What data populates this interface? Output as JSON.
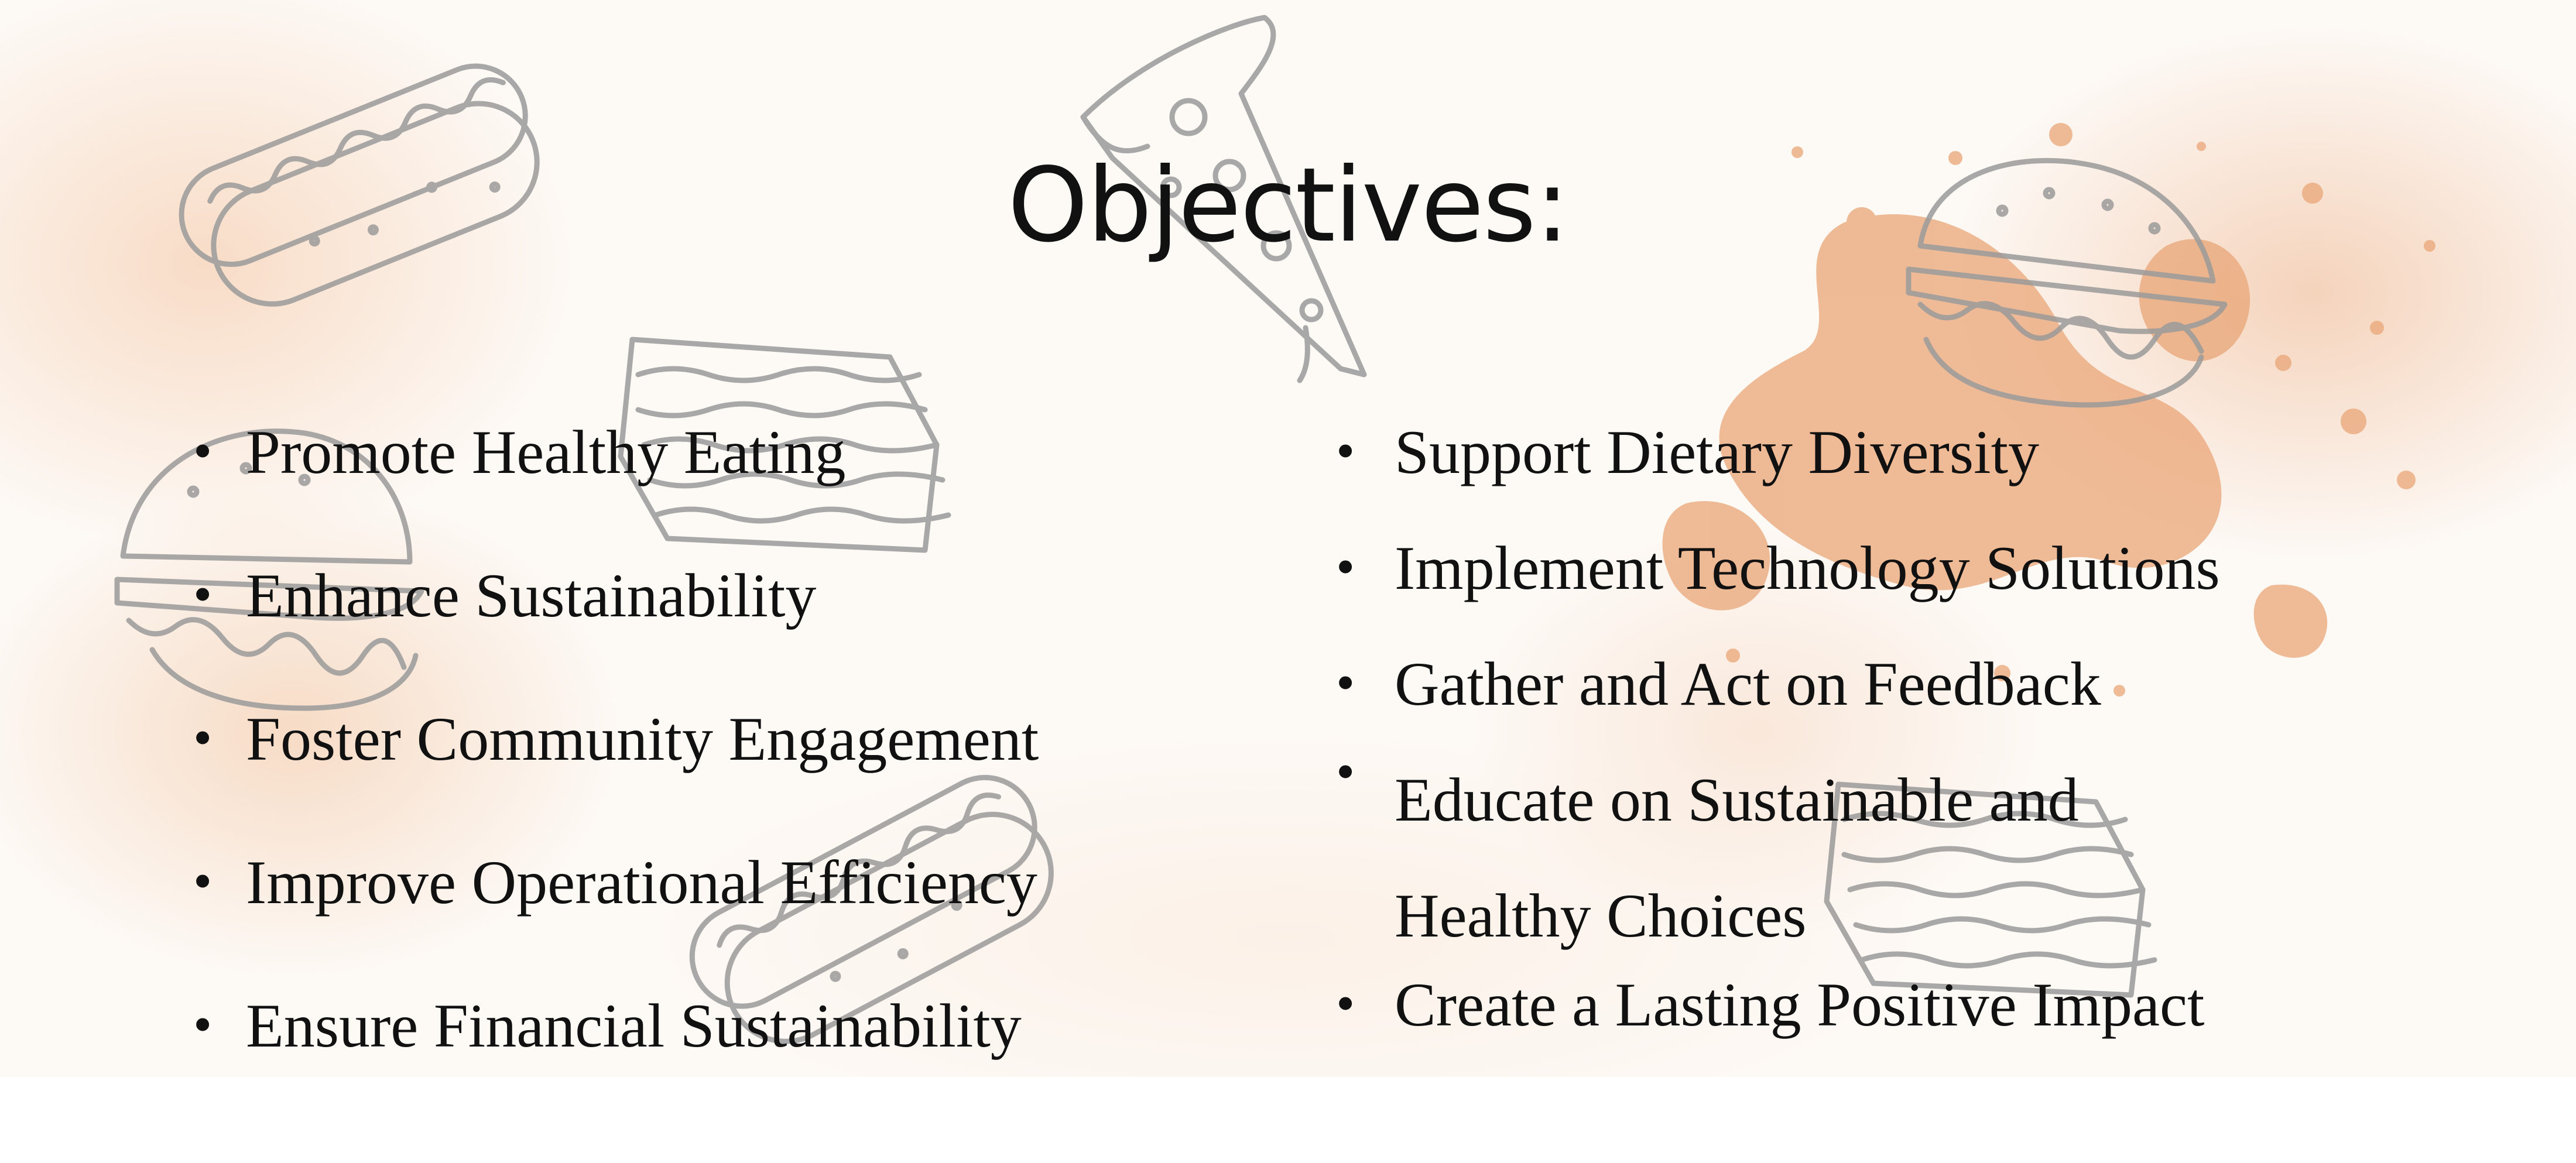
{
  "slide": {
    "title": "Objectives:",
    "left_column": [
      "Promote Healthy Eating",
      "Enhance Sustainability",
      "Foster Community Engagement",
      "Improve Operational Efficiency",
      "Ensure Financial Sustainability"
    ],
    "right_column": [
      "Support Dietary Diversity",
      "Implement Technology Solutions",
      "Gather and Act on Feedback",
      "Educate on Sustainable and Healthy Choices",
      "Create a Lasting Positive Impact"
    ],
    "bullet": "•"
  },
  "colors": {
    "text": "#111111",
    "wash": "#f4c4a0",
    "splatter": "#e9a677",
    "doodle_stroke": "#9a9a9a"
  },
  "decorations": [
    "hotdog-sketch",
    "pizza-slice-sketch",
    "burger-sketch",
    "lasagna-sketch",
    "watercolor-splatter"
  ]
}
